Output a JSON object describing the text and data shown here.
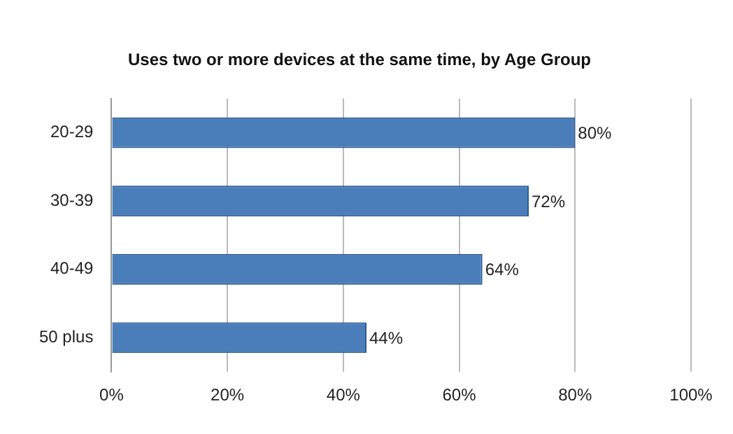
{
  "chart_data": {
    "type": "bar",
    "orientation": "horizontal",
    "title": "Uses two or more devices at the same time, by Age Group",
    "categories": [
      "20-29",
      "30-39",
      "40-49",
      "50 plus"
    ],
    "values": [
      80,
      72,
      64,
      44
    ],
    "value_labels": [
      "80%",
      "72%",
      "64%",
      "44%"
    ],
    "color": "#4a7ebb",
    "xlim": [
      0,
      100
    ],
    "xticks": [
      {
        "value": 0,
        "label": "0%"
      },
      {
        "value": 20,
        "label": "20%"
      },
      {
        "value": 40,
        "label": "40%"
      },
      {
        "value": 60,
        "label": "60%"
      },
      {
        "value": 80,
        "label": "80%"
      },
      {
        "value": 100,
        "label": "100%"
      }
    ],
    "grid": "x"
  }
}
